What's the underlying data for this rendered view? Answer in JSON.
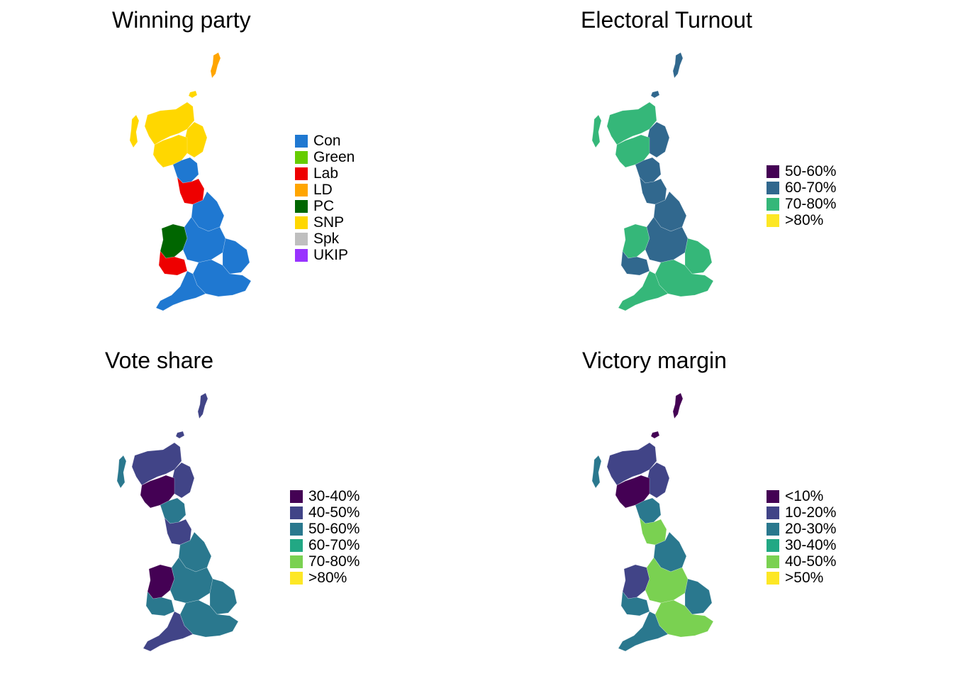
{
  "panels": [
    {
      "id": "winning-party",
      "title": "Winning party",
      "legend": [
        {
          "label": "Con",
          "color": "#1f78d1"
        },
        {
          "label": "Green",
          "color": "#66cc00"
        },
        {
          "label": "Lab",
          "color": "#ee0000"
        },
        {
          "label": "LD",
          "color": "#ffa500"
        },
        {
          "label": "PC",
          "color": "#006600"
        },
        {
          "label": "SNP",
          "color": "#ffd700"
        },
        {
          "label": "Spk",
          "color": "#bfbfbf"
        },
        {
          "label": "UKIP",
          "color": "#9933ff"
        }
      ],
      "region_colors": {
        "shetland": "#ffa500",
        "orkney": "#ffd700",
        "hebrides": "#ffd700",
        "highlands": "#ffd700",
        "scotland_east": "#ffd700",
        "central_belt": "#ffd700",
        "borders": "#1f78d1",
        "cumbria_ne": "#ee0000",
        "yorkshire": "#1f78d1",
        "wales": "#006600",
        "wales_south": "#ee0000",
        "midlands": "#1f78d1",
        "east_anglia": "#1f78d1",
        "south_east": "#1f78d1",
        "south_west": "#1f78d1",
        "london": "#bfbfbf",
        "northern_ireland": "#1f78d1"
      }
    },
    {
      "id": "electoral-turnout",
      "title": "Electoral Turnout",
      "legend": [
        {
          "label": "50-60%",
          "color": "#440154"
        },
        {
          "label": "60-70%",
          "color": "#31688e"
        },
        {
          "label": "70-80%",
          "color": "#35b779"
        },
        {
          "label": ">80%",
          "color": "#fde725"
        }
      ],
      "region_colors": {
        "shetland": "#31688e",
        "orkney": "#31688e",
        "hebrides": "#35b779",
        "highlands": "#35b779",
        "scotland_east": "#31688e",
        "central_belt": "#35b779",
        "borders": "#31688e",
        "cumbria_ne": "#31688e",
        "yorkshire": "#31688e",
        "wales": "#35b779",
        "wales_south": "#31688e",
        "midlands": "#31688e",
        "east_anglia": "#35b779",
        "south_east": "#35b779",
        "south_west": "#35b779",
        "london": "#31688e",
        "northern_ireland": "#35b779"
      }
    },
    {
      "id": "vote-share",
      "title": "Vote share",
      "legend": [
        {
          "label": "30-40%",
          "color": "#440154"
        },
        {
          "label": "40-50%",
          "color": "#414487"
        },
        {
          "label": "50-60%",
          "color": "#2a788e"
        },
        {
          "label": "60-70%",
          "color": "#22a884"
        },
        {
          "label": "70-80%",
          "color": "#7ad151"
        },
        {
          "label": ">80%",
          "color": "#fde725"
        }
      ],
      "region_colors": {
        "shetland": "#414487",
        "orkney": "#414487",
        "hebrides": "#2a788e",
        "highlands": "#414487",
        "scotland_east": "#414487",
        "central_belt": "#440154",
        "borders": "#2a788e",
        "cumbria_ne": "#414487",
        "yorkshire": "#2a788e",
        "wales": "#440154",
        "wales_south": "#2a788e",
        "midlands": "#2a788e",
        "east_anglia": "#2a788e",
        "south_east": "#2a788e",
        "south_west": "#414487",
        "london": "#22a884",
        "northern_ireland": "#2a788e"
      }
    },
    {
      "id": "victory-margin",
      "title": "Victory margin",
      "legend": [
        {
          "label": "<10%",
          "color": "#440154"
        },
        {
          "label": "10-20%",
          "color": "#414487"
        },
        {
          "label": "20-30%",
          "color": "#2a788e"
        },
        {
          "label": "30-40%",
          "color": "#22a884"
        },
        {
          "label": "40-50%",
          "color": "#7ad151"
        },
        {
          "label": ">50%",
          "color": "#fde725"
        }
      ],
      "region_colors": {
        "shetland": "#440154",
        "orkney": "#440154",
        "hebrides": "#2a788e",
        "highlands": "#414487",
        "scotland_east": "#414487",
        "central_belt": "#440154",
        "borders": "#2a788e",
        "cumbria_ne": "#7ad151",
        "yorkshire": "#2a788e",
        "wales": "#414487",
        "wales_south": "#2a788e",
        "midlands": "#7ad151",
        "east_anglia": "#2a788e",
        "south_east": "#7ad151",
        "south_west": "#2a788e",
        "london": "#22a884",
        "northern_ireland": "#2a788e"
      }
    }
  ]
}
